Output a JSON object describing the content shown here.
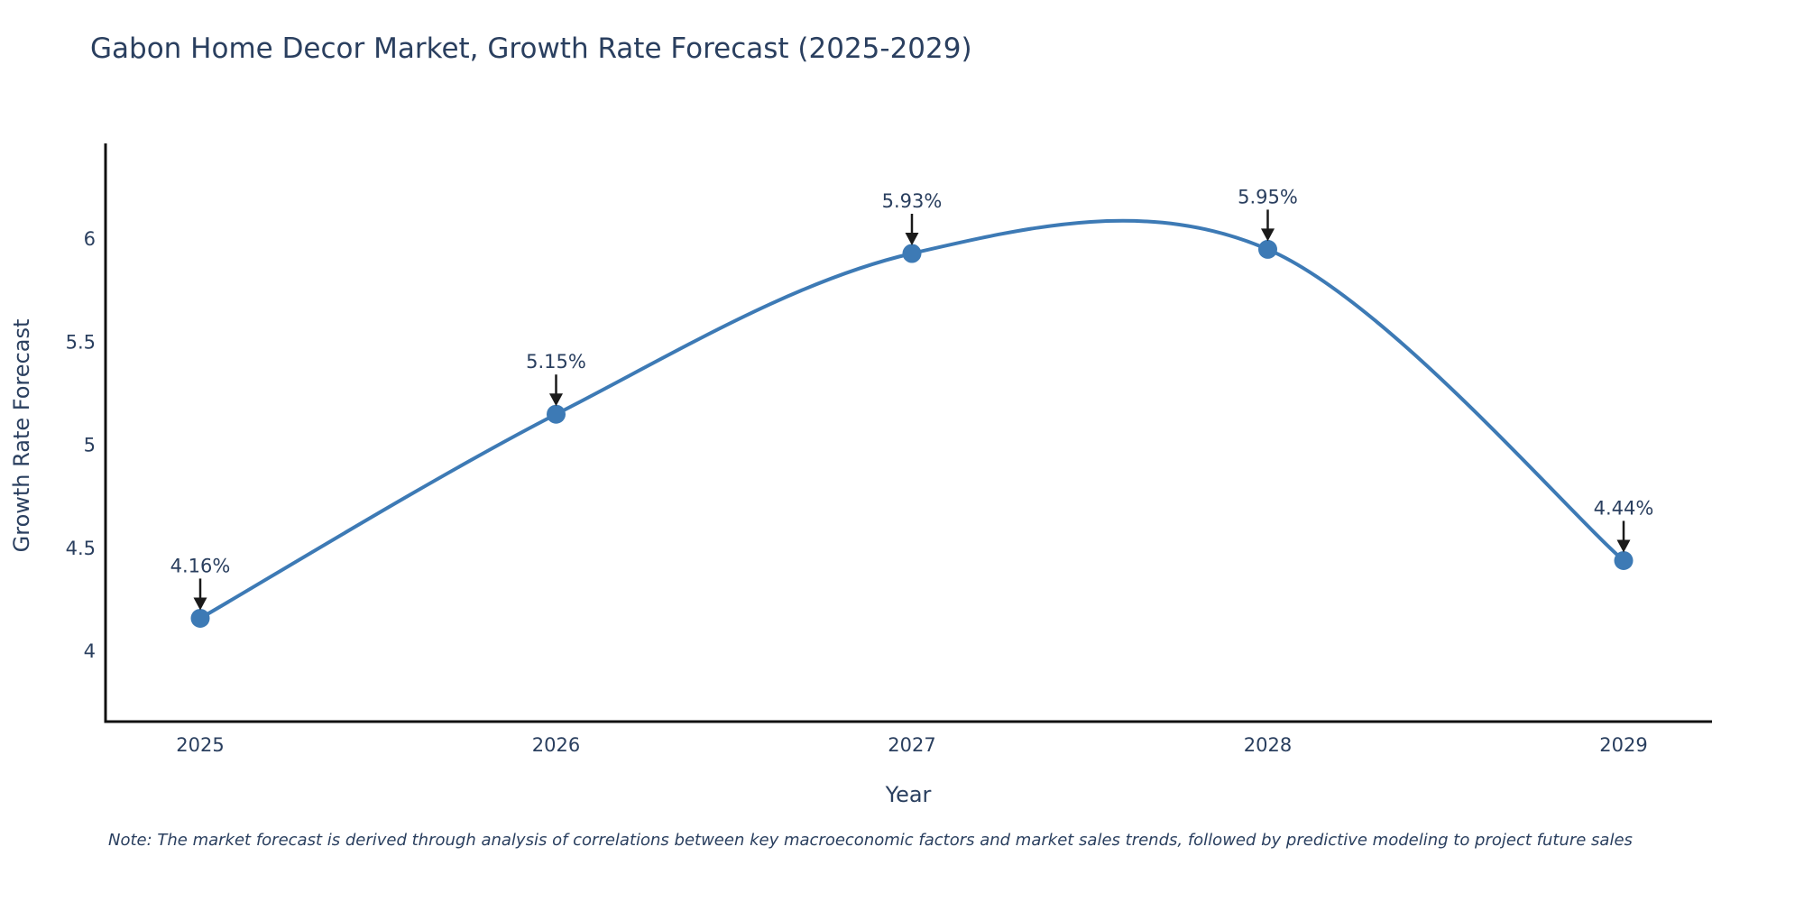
{
  "title": "Gabon Home Decor Market, Growth Rate Forecast (2025-2029)",
  "note": "Note: The market forecast is derived through analysis of correlations between key macroeconomic factors and market sales trends, followed by predictive modeling to project future sales",
  "chart_data": {
    "type": "line",
    "line_shape": "spline",
    "x": [
      "2025",
      "2026",
      "2027",
      "2028",
      "2029"
    ],
    "series": [
      {
        "name": "Growth Rate Forecast",
        "values": [
          4.16,
          5.15,
          5.93,
          5.95,
          4.44
        ]
      }
    ],
    "point_labels": [
      "4.16%",
      "5.15%",
      "5.93%",
      "5.95%",
      "4.44%"
    ],
    "title": "Gabon Home Decor Market, Growth Rate Forecast (2025-2029)",
    "xlabel": "Year",
    "ylabel": "Growth Rate Forecast",
    "yticks": [
      "4",
      "4.5",
      "5",
      "5.5",
      "6"
    ],
    "ytick_values": [
      4,
      4.5,
      5,
      5.5,
      6
    ],
    "ylim": [
      3.66,
      6.46
    ],
    "grid": false,
    "legend": false,
    "annotations": "black downward arrows from each value label to its data point"
  },
  "colors": {
    "background": "#ffffff",
    "line": "#3d7ab5",
    "marker": "#3d7ab5",
    "text": "#2a3f5f",
    "axis_line": "#111111",
    "arrow": "#1a1a1a"
  }
}
